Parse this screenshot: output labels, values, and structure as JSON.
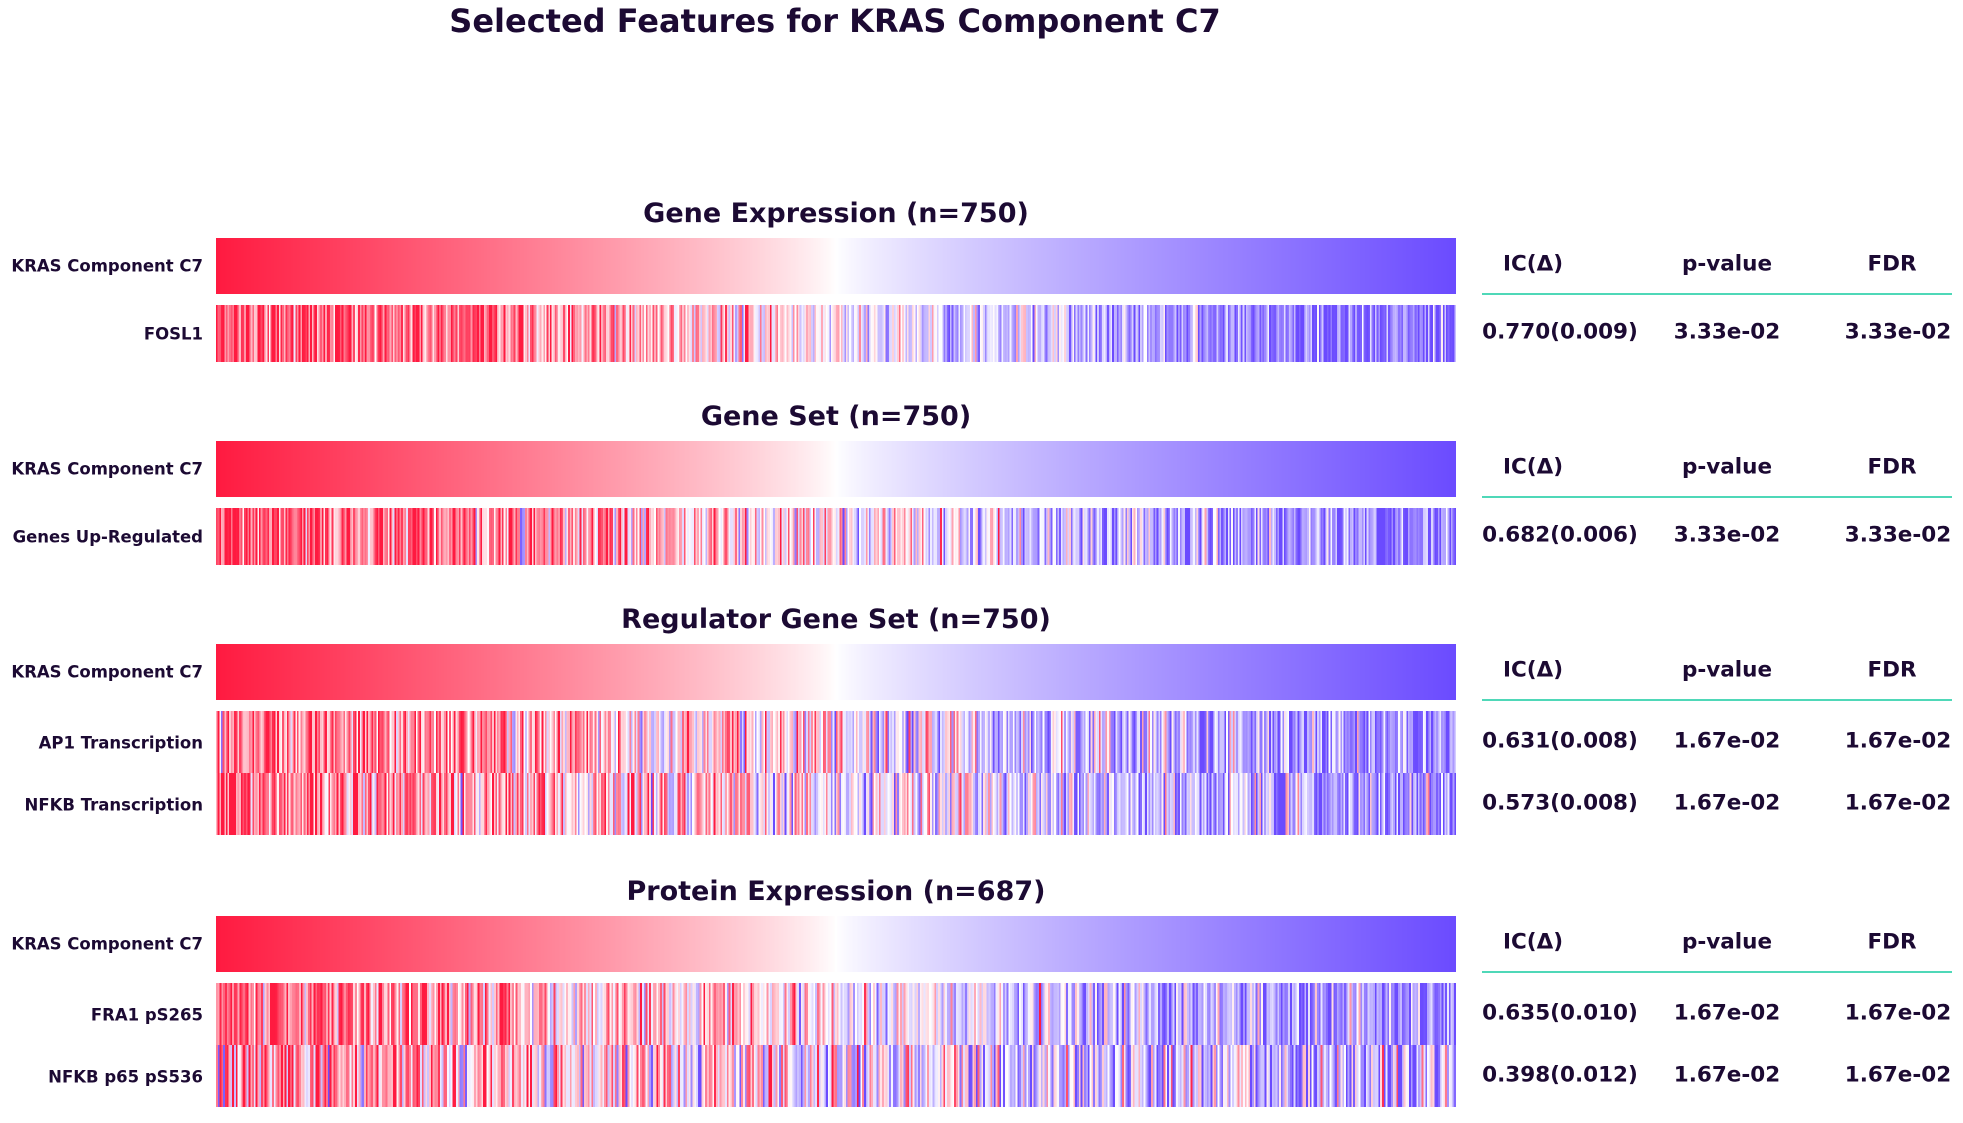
{
  "title": "Selected Features for KRAS Component C7",
  "colors": {
    "high": "#ff1a40",
    "mid": "#ffffff",
    "low": "#6b4bff",
    "rule": "#4fd8b8",
    "text": "#1c0a33"
  },
  "stats_header": {
    "ic": "IC(Δ)",
    "p": "p-value",
    "fdr": "FDR"
  },
  "chart_data": {
    "type": "heatmap",
    "panels": [
      {
        "title": "Gene Expression (n=750)",
        "n": 750,
        "target_label": "KRAS Component C7",
        "features": [
          {
            "name": "FOSL1",
            "ic": "0.770(0.009)",
            "p": "3.33e-02",
            "fdr": "3.33e-02",
            "ic_value": 0.77
          }
        ]
      },
      {
        "title": "Gene Set (n=750)",
        "n": 750,
        "target_label": "KRAS Component C7",
        "features": [
          {
            "name": "Genes Up-Regulated",
            "ic": "0.682(0.006)",
            "p": "3.33e-02",
            "fdr": "3.33e-02",
            "ic_value": 0.682
          }
        ]
      },
      {
        "title": "Regulator Gene Set (n=750)",
        "n": 750,
        "target_label": "KRAS Component C7",
        "features": [
          {
            "name": "AP1 Transcription ",
            "ic": "0.631(0.008)",
            "p": "1.67e-02",
            "fdr": "1.67e-02",
            "ic_value": 0.631
          },
          {
            "name": "NFKB Transcription",
            "ic": "0.573(0.008)",
            "p": "1.67e-02",
            "fdr": "1.67e-02",
            "ic_value": 0.573
          }
        ]
      },
      {
        "title": "Protein Expression (n=687)",
        "n": 687,
        "target_label": "KRAS Component C7",
        "features": [
          {
            "name": "FRA1 pS265",
            "ic": "0.635(0.010)",
            "p": "1.67e-02",
            "fdr": "1.67e-02",
            "ic_value": 0.635
          },
          {
            "name": "NFKB p65 pS536",
            "ic": "0.398(0.012)",
            "p": "1.67e-02",
            "fdr": "1.67e-02",
            "ic_value": 0.398
          }
        ]
      }
    ]
  }
}
